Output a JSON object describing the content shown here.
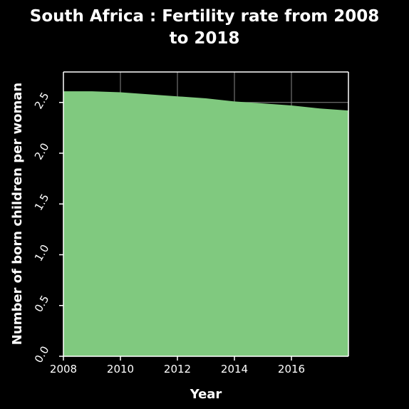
{
  "chart_data": {
    "type": "area",
    "title_line1": "South Africa : Fertility rate from 2008",
    "title_line2": "to 2018",
    "xlabel": "Year",
    "ylabel": "Number of born children per woman",
    "x": [
      2008,
      2009,
      2010,
      2011,
      2012,
      2013,
      2014,
      2015,
      2016,
      2017,
      2018
    ],
    "values": [
      2.61,
      2.61,
      2.6,
      2.58,
      2.56,
      2.54,
      2.51,
      2.49,
      2.47,
      2.44,
      2.42
    ],
    "xlim": [
      2008,
      2018
    ],
    "ylim": [
      0,
      2.8
    ],
    "x_ticks": [
      "2008",
      "2010",
      "2012",
      "2014",
      "2016"
    ],
    "y_ticks": [
      "0.0",
      "0.5",
      "1.0",
      "1.5",
      "2.0",
      "2.5"
    ],
    "grid": true,
    "colors": {
      "background": "#000000",
      "area_fill": "#80c97f",
      "grid": "#888888",
      "axis": "#ffffff",
      "text": "#ffffff"
    }
  }
}
